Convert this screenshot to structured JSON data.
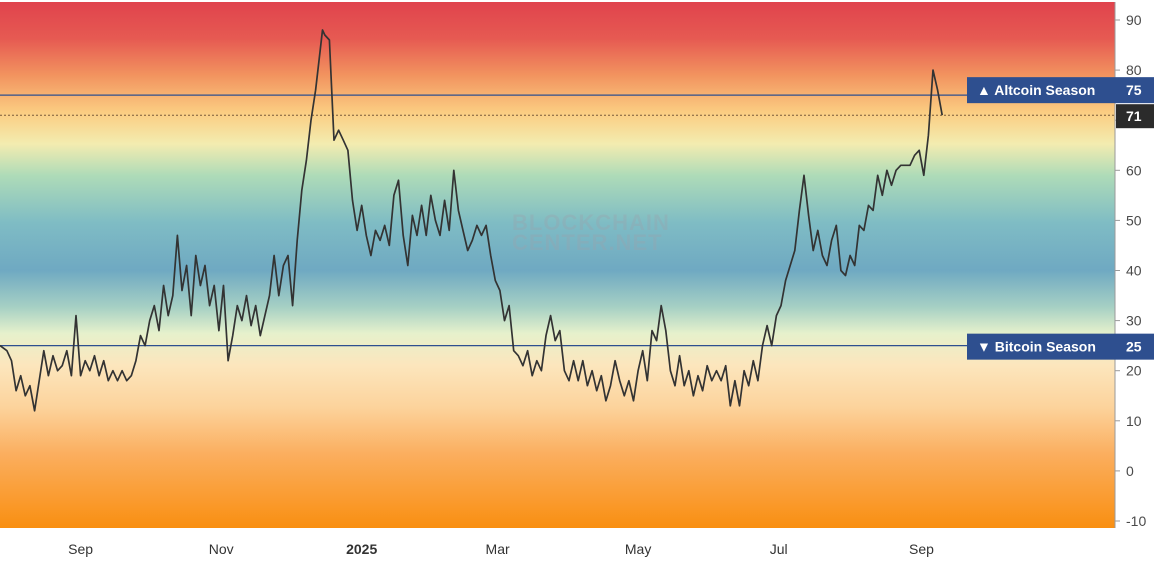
{
  "chart_data": {
    "type": "line",
    "title": "",
    "xlabel": "",
    "ylabel": "",
    "ylim": [
      -12,
      94
    ],
    "y_ticks": [
      90,
      80,
      70,
      60,
      50,
      40,
      30,
      20,
      10,
      0,
      -10
    ],
    "x_ticks": [
      "Sep",
      "Nov",
      "2025",
      "Mar",
      "May",
      "Jul",
      "Sep"
    ],
    "x_range": [
      "2024-07-28",
      "2025-11-24"
    ],
    "x_tick_dates": [
      "2024-09-01",
      "2024-11-01",
      "2025-01-01",
      "2025-03-01",
      "2025-05-01",
      "2025-07-01",
      "2025-09-01"
    ],
    "grid": false,
    "legend": "none",
    "background": "vertical gradient: red at top, orange/yellow, green, blue near 40, green, yellow, orange at bottom",
    "thresholds": [
      {
        "name": "Altcoin Season",
        "value": 75,
        "marker": "▲",
        "color": "#2e4f8f"
      },
      {
        "name": "Bitcoin Season",
        "value": 25,
        "marker": "▼",
        "color": "#2e4f8f"
      }
    ],
    "last_value": 71,
    "series": [
      {
        "color": "#333333",
        "points": [
          [
            "2024-07-28",
            25
          ],
          [
            "2024-07-31",
            24
          ],
          [
            "2024-08-02",
            22
          ],
          [
            "2024-08-04",
            16
          ],
          [
            "2024-08-06",
            19
          ],
          [
            "2024-08-08",
            15
          ],
          [
            "2024-08-10",
            17
          ],
          [
            "2024-08-12",
            12
          ],
          [
            "2024-08-14",
            18
          ],
          [
            "2024-08-16",
            24
          ],
          [
            "2024-08-18",
            19
          ],
          [
            "2024-08-20",
            23
          ],
          [
            "2024-08-22",
            20
          ],
          [
            "2024-08-24",
            21
          ],
          [
            "2024-08-26",
            24
          ],
          [
            "2024-08-28",
            19
          ],
          [
            "2024-08-30",
            31
          ],
          [
            "2024-09-01",
            19
          ],
          [
            "2024-09-03",
            22
          ],
          [
            "2024-09-05",
            20
          ],
          [
            "2024-09-07",
            23
          ],
          [
            "2024-09-09",
            19
          ],
          [
            "2024-09-11",
            22
          ],
          [
            "2024-09-13",
            18
          ],
          [
            "2024-09-15",
            20
          ],
          [
            "2024-09-17",
            18
          ],
          [
            "2024-09-19",
            20
          ],
          [
            "2024-09-21",
            18
          ],
          [
            "2024-09-23",
            19
          ],
          [
            "2024-09-25",
            22
          ],
          [
            "2024-09-27",
            27
          ],
          [
            "2024-09-29",
            25
          ],
          [
            "2024-10-01",
            30
          ],
          [
            "2024-10-03",
            33
          ],
          [
            "2024-10-05",
            28
          ],
          [
            "2024-10-07",
            37
          ],
          [
            "2024-10-09",
            31
          ],
          [
            "2024-10-11",
            35
          ],
          [
            "2024-10-13",
            47
          ],
          [
            "2024-10-15",
            36
          ],
          [
            "2024-10-17",
            41
          ],
          [
            "2024-10-19",
            31
          ],
          [
            "2024-10-21",
            43
          ],
          [
            "2024-10-23",
            37
          ],
          [
            "2024-10-25",
            41
          ],
          [
            "2024-10-27",
            33
          ],
          [
            "2024-10-29",
            37
          ],
          [
            "2024-10-31",
            28
          ],
          [
            "2024-11-02",
            37
          ],
          [
            "2024-11-04",
            22
          ],
          [
            "2024-11-06",
            27
          ],
          [
            "2024-11-08",
            33
          ],
          [
            "2024-11-10",
            30
          ],
          [
            "2024-11-12",
            35
          ],
          [
            "2024-11-14",
            29
          ],
          [
            "2024-11-16",
            33
          ],
          [
            "2024-11-18",
            27
          ],
          [
            "2024-11-20",
            31
          ],
          [
            "2024-11-22",
            35
          ],
          [
            "2024-11-24",
            43
          ],
          [
            "2024-11-26",
            35
          ],
          [
            "2024-11-28",
            41
          ],
          [
            "2024-11-30",
            43
          ],
          [
            "2024-12-02",
            33
          ],
          [
            "2024-12-04",
            46
          ],
          [
            "2024-12-06",
            56
          ],
          [
            "2024-12-08",
            62
          ],
          [
            "2024-12-10",
            70
          ],
          [
            "2024-12-12",
            76
          ],
          [
            "2024-12-14",
            84
          ],
          [
            "2024-12-15",
            88
          ],
          [
            "2024-12-16",
            87
          ],
          [
            "2024-12-18",
            86
          ],
          [
            "2024-12-20",
            66
          ],
          [
            "2024-12-22",
            68
          ],
          [
            "2024-12-24",
            66
          ],
          [
            "2024-12-26",
            64
          ],
          [
            "2024-12-28",
            54
          ],
          [
            "2024-12-30",
            48
          ],
          [
            "2025-01-01",
            53
          ],
          [
            "2025-01-03",
            47
          ],
          [
            "2025-01-05",
            43
          ],
          [
            "2025-01-07",
            48
          ],
          [
            "2025-01-09",
            46
          ],
          [
            "2025-01-11",
            49
          ],
          [
            "2025-01-13",
            45
          ],
          [
            "2025-01-15",
            55
          ],
          [
            "2025-01-17",
            58
          ],
          [
            "2025-01-19",
            47
          ],
          [
            "2025-01-21",
            41
          ],
          [
            "2025-01-23",
            51
          ],
          [
            "2025-01-25",
            47
          ],
          [
            "2025-01-27",
            53
          ],
          [
            "2025-01-29",
            47
          ],
          [
            "2025-01-31",
            55
          ],
          [
            "2025-02-02",
            50
          ],
          [
            "2025-02-04",
            47
          ],
          [
            "2025-02-06",
            54
          ],
          [
            "2025-02-08",
            48
          ],
          [
            "2025-02-10",
            60
          ],
          [
            "2025-02-12",
            52
          ],
          [
            "2025-02-14",
            48
          ],
          [
            "2025-02-16",
            44
          ],
          [
            "2025-02-18",
            46
          ],
          [
            "2025-02-20",
            49
          ],
          [
            "2025-02-22",
            47
          ],
          [
            "2025-02-24",
            49
          ],
          [
            "2025-02-26",
            43
          ],
          [
            "2025-02-28",
            38
          ],
          [
            "2025-03-02",
            36
          ],
          [
            "2025-03-04",
            30
          ],
          [
            "2025-03-06",
            33
          ],
          [
            "2025-03-08",
            24
          ],
          [
            "2025-03-10",
            23
          ],
          [
            "2025-03-12",
            21
          ],
          [
            "2025-03-14",
            24
          ],
          [
            "2025-03-16",
            19
          ],
          [
            "2025-03-18",
            22
          ],
          [
            "2025-03-20",
            20
          ],
          [
            "2025-03-22",
            27
          ],
          [
            "2025-03-24",
            31
          ],
          [
            "2025-03-26",
            26
          ],
          [
            "2025-03-28",
            28
          ],
          [
            "2025-03-30",
            20
          ],
          [
            "2025-04-01",
            18
          ],
          [
            "2025-04-03",
            22
          ],
          [
            "2025-04-05",
            18
          ],
          [
            "2025-04-07",
            22
          ],
          [
            "2025-04-09",
            17
          ],
          [
            "2025-04-11",
            20
          ],
          [
            "2025-04-13",
            16
          ],
          [
            "2025-04-15",
            19
          ],
          [
            "2025-04-17",
            14
          ],
          [
            "2025-04-19",
            17
          ],
          [
            "2025-04-21",
            22
          ],
          [
            "2025-04-23",
            18
          ],
          [
            "2025-04-25",
            15
          ],
          [
            "2025-04-27",
            18
          ],
          [
            "2025-04-29",
            14
          ],
          [
            "2025-05-01",
            20
          ],
          [
            "2025-05-03",
            24
          ],
          [
            "2025-05-05",
            18
          ],
          [
            "2025-05-07",
            28
          ],
          [
            "2025-05-09",
            26
          ],
          [
            "2025-05-11",
            33
          ],
          [
            "2025-05-13",
            28
          ],
          [
            "2025-05-15",
            20
          ],
          [
            "2025-05-17",
            17
          ],
          [
            "2025-05-19",
            23
          ],
          [
            "2025-05-21",
            17
          ],
          [
            "2025-05-23",
            20
          ],
          [
            "2025-05-25",
            15
          ],
          [
            "2025-05-27",
            19
          ],
          [
            "2025-05-29",
            16
          ],
          [
            "2025-05-31",
            21
          ],
          [
            "2025-06-02",
            18
          ],
          [
            "2025-06-04",
            20
          ],
          [
            "2025-06-06",
            18
          ],
          [
            "2025-06-08",
            21
          ],
          [
            "2025-06-10",
            13
          ],
          [
            "2025-06-12",
            18
          ],
          [
            "2025-06-14",
            13
          ],
          [
            "2025-06-16",
            20
          ],
          [
            "2025-06-18",
            17
          ],
          [
            "2025-06-20",
            22
          ],
          [
            "2025-06-22",
            18
          ],
          [
            "2025-06-24",
            25
          ],
          [
            "2025-06-26",
            29
          ],
          [
            "2025-06-28",
            25
          ],
          [
            "2025-06-30",
            31
          ],
          [
            "2025-07-02",
            33
          ],
          [
            "2025-07-04",
            38
          ],
          [
            "2025-07-06",
            41
          ],
          [
            "2025-07-08",
            44
          ],
          [
            "2025-07-10",
            52
          ],
          [
            "2025-07-12",
            59
          ],
          [
            "2025-07-14",
            51
          ],
          [
            "2025-07-16",
            44
          ],
          [
            "2025-07-18",
            48
          ],
          [
            "2025-07-20",
            43
          ],
          [
            "2025-07-22",
            41
          ],
          [
            "2025-07-24",
            46
          ],
          [
            "2025-07-26",
            49
          ],
          [
            "2025-07-28",
            40
          ],
          [
            "2025-07-30",
            39
          ],
          [
            "2025-08-01",
            43
          ],
          [
            "2025-08-03",
            41
          ],
          [
            "2025-08-05",
            49
          ],
          [
            "2025-08-07",
            48
          ],
          [
            "2025-08-09",
            53
          ],
          [
            "2025-08-11",
            52
          ],
          [
            "2025-08-13",
            59
          ],
          [
            "2025-08-15",
            55
          ],
          [
            "2025-08-17",
            60
          ],
          [
            "2025-08-19",
            57
          ],
          [
            "2025-08-21",
            60
          ],
          [
            "2025-08-23",
            61
          ],
          [
            "2025-08-25",
            61
          ],
          [
            "2025-08-27",
            61
          ],
          [
            "2025-08-29",
            63
          ],
          [
            "2025-08-31",
            64
          ],
          [
            "2025-09-02",
            59
          ],
          [
            "2025-09-04",
            67
          ],
          [
            "2025-09-06",
            80
          ],
          [
            "2025-09-08",
            76
          ],
          [
            "2025-09-10",
            71
          ]
        ]
      }
    ]
  },
  "badges": {
    "altcoin_label": "▲ Altcoin Season",
    "altcoin_value": "75",
    "bitcoin_label": "▼ Bitcoin Season",
    "bitcoin_value": "25",
    "last_value_label": "71"
  },
  "watermark": [
    "BLOCKCHAIN",
    "CENTER.NET"
  ]
}
